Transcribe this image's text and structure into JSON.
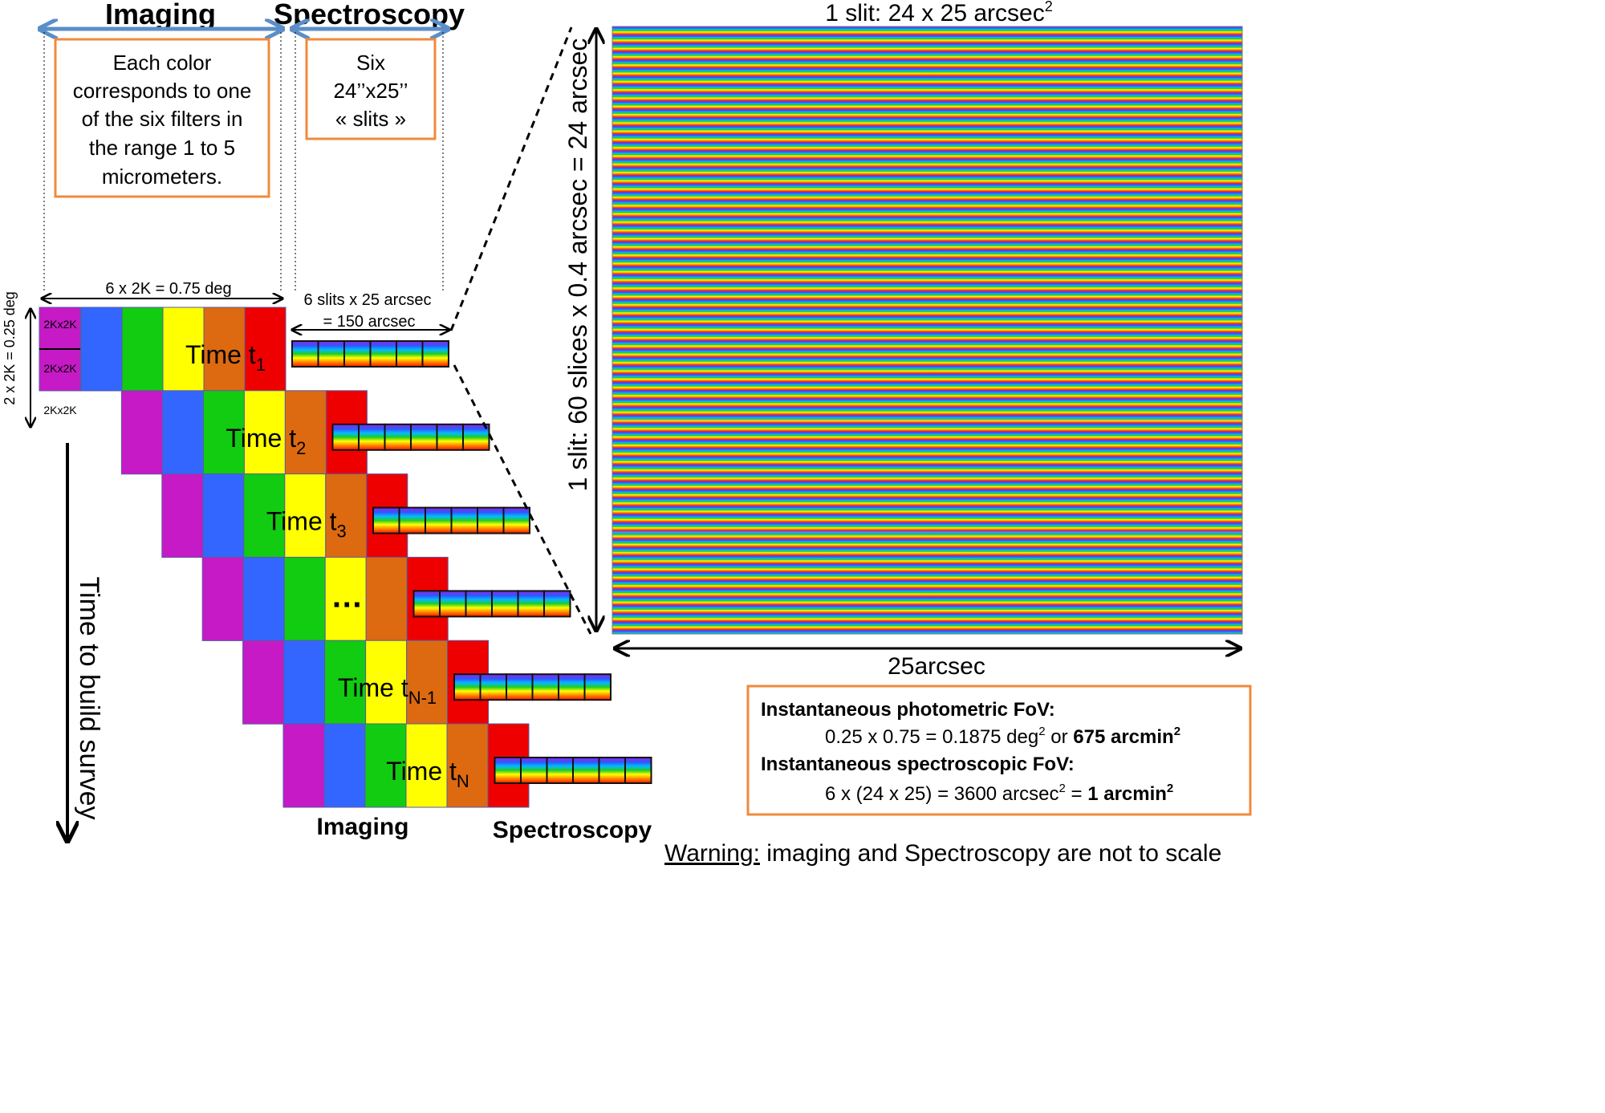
{
  "header": {
    "imaging": "Imaging",
    "spectroscopy": "Spectroscopy"
  },
  "boxes": {
    "imaging_note": [
      "Each color",
      "corresponds to one",
      "of the six filters in",
      "the range 1 to 5",
      "micrometers."
    ],
    "slits_note": [
      "Six",
      "24’’x25’’",
      "« slits »"
    ]
  },
  "dims": {
    "width": "6 x 2K = 0.75 deg",
    "height": "2 x 2K = 0.25 deg",
    "chip": "2Kx2K",
    "slits_line1": "6 slits x 25 arcsec",
    "slits_line2": "= 150 arcsec"
  },
  "time_labels": [
    {
      "base": "Time t",
      "sub": "1"
    },
    {
      "base": "Time t",
      "sub": "2"
    },
    {
      "base": "Time t",
      "sub": "3"
    },
    {
      "base": "…",
      "sub": ""
    },
    {
      "base": "Time t",
      "sub": "N-1"
    },
    {
      "base": "Time t",
      "sub": "N"
    }
  ],
  "survey_axis": "Time to build survey",
  "footer": {
    "imaging": "Imaging",
    "spectroscopy": "Spectroscopy",
    "warning_label": "Warning:",
    "warning_text": " imaging and Spectroscopy are not to scale"
  },
  "slit_panel": {
    "title": "1 slit: 24 x 25 arcsec",
    "title_sup": "2",
    "vertical_label": "1 slit: 60 slices x 0.4 arcsec = 24 arcsec",
    "bottom_label": "25arcsec"
  },
  "fov": {
    "photometric_title": "Instantaneous photometric FoV:",
    "photometric_value": "0.25 x 0.75 =  0.1875 deg",
    "photometric_sup": "2",
    "photometric_or": " or ",
    "photometric_bold": "675 arcmin",
    "photometric_bold_sup": "2",
    "spectroscopic_title": "Instantaneous spectroscopic FoV:",
    "spectroscopic_value": "6 x (24 x 25) = 3600 arcsec",
    "spectroscopic_sup": "2",
    "spectroscopic_eq": " = ",
    "spectroscopic_bold": "1 arcmin",
    "spectroscopic_bold_sup": "2"
  },
  "colors": {
    "filters": [
      "#c61ac6",
      "#3366ff",
      "#11cc11",
      "#ffff00",
      "#dd6a11",
      "#ee0000"
    ],
    "box_border": "#f08a3c",
    "header_arrow": "#5b8ec9",
    "spectrum": [
      "#8a2be2",
      "#3355ff",
      "#00bbff",
      "#22cc22",
      "#ffff00",
      "#ff8800",
      "#ff1100"
    ]
  }
}
